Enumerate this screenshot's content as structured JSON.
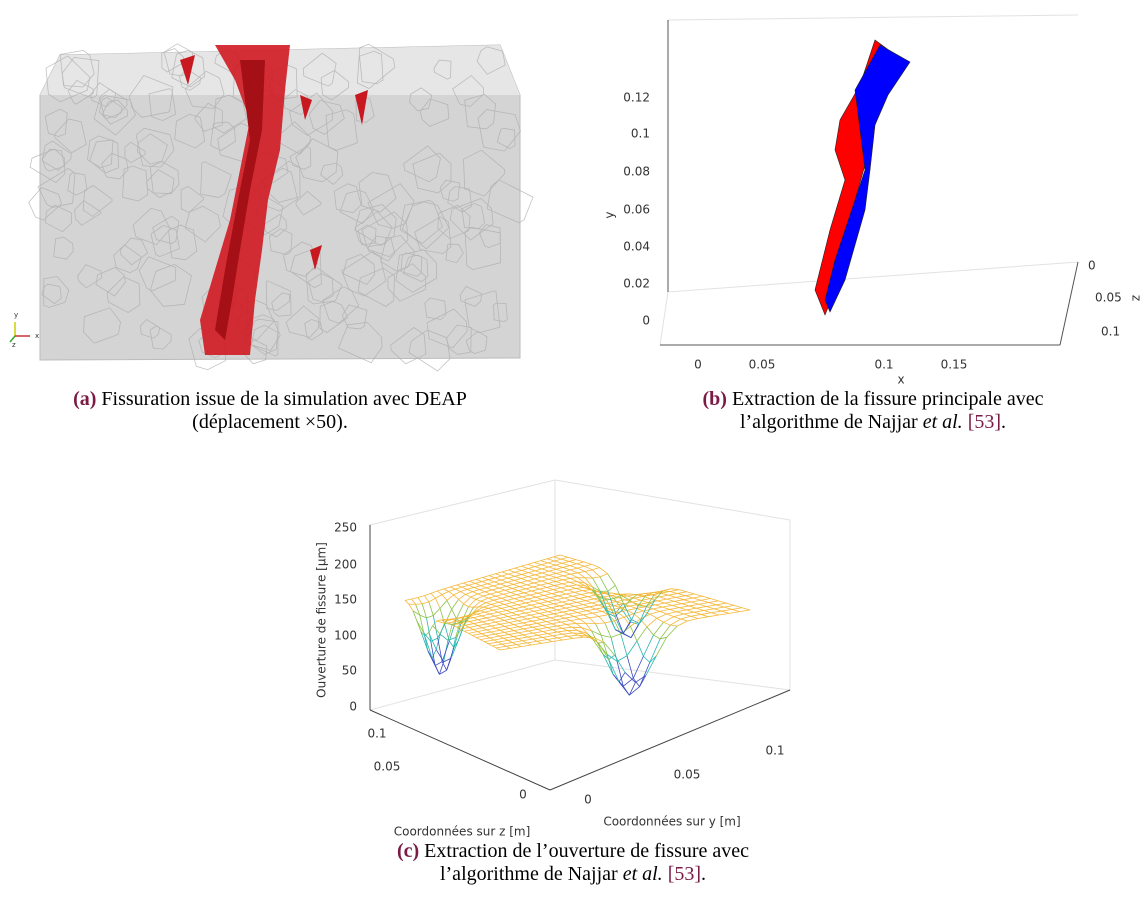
{
  "panels": [
    {
      "label": "(a)",
      "line1": "Fissuration issue de la simulation avec DEAP",
      "line2": "(déplacement ×50).",
      "triad": [
        "y",
        "x",
        "z"
      ]
    },
    {
      "label": "(b)",
      "line1": "Extraction de la fissure principale avec",
      "line2": "l’algorithme de Najjar",
      "italic": "et al.",
      "citation": "[53]",
      "end": ".",
      "plot": {
        "y_label": "y",
        "x_label": "x",
        "z_label": "z",
        "yticks": [
          "0.12",
          "0.1",
          "0.08",
          "0.06",
          "0.04",
          "0.02",
          "0"
        ],
        "xticks": [
          "0",
          "0.05",
          "0.1",
          "0.15"
        ],
        "zticks": [
          "0",
          "0.05",
          "0.1"
        ]
      }
    },
    {
      "label": "(c)",
      "line1": "Extraction de l’ouverture de fissure avec",
      "line2": "l’algorithme de Najjar",
      "italic": "et al.",
      "citation": "[53]",
      "end": ".",
      "plot": {
        "y_label": "Ouverture de fissure [µm]",
        "z_label": "Coordonnées sur z [m]",
        "x_label": "Coordonnées sur y [m]",
        "yticks": [
          "250",
          "200",
          "150",
          "100",
          "50",
          "0"
        ],
        "zticks": [
          "0.1",
          "0.05",
          "0"
        ],
        "xticks": [
          "0",
          "0.05",
          "0.1"
        ]
      }
    }
  ]
}
